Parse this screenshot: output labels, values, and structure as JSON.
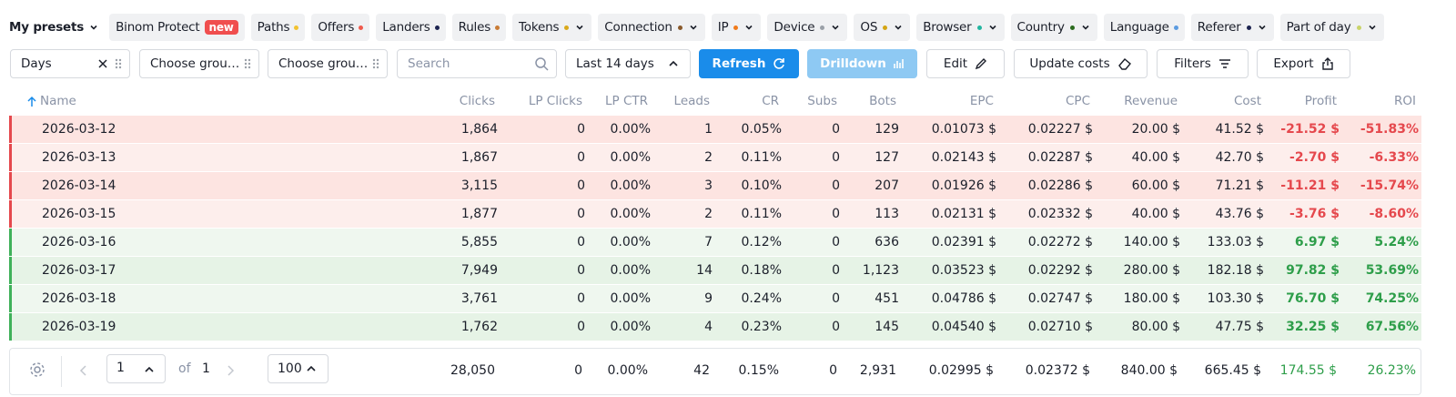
{
  "presets": {
    "label": "My presets"
  },
  "tabs": [
    {
      "label": "Binom Protect",
      "badge": "new"
    },
    {
      "label": "Paths",
      "dot": "#f2c230"
    },
    {
      "label": "Offers",
      "dot": "#ef5a4c"
    },
    {
      "label": "Landers",
      "dot": "#1c2350"
    },
    {
      "label": "Rules",
      "dot": "#c97b35"
    },
    {
      "label": "Tokens",
      "dot": "#d9a91a",
      "menu": true
    },
    {
      "label": "Connection",
      "dot": "#8a5a2b",
      "menu": true
    },
    {
      "label": "IP",
      "dot": "#f07a1a",
      "menu": true
    },
    {
      "label": "Device",
      "dot": "#9aa0a8",
      "menu": true
    },
    {
      "label": "OS",
      "dot": "#d4a514",
      "menu": true
    },
    {
      "label": "Browser",
      "dot": "#22b5a0",
      "menu": true
    },
    {
      "label": "Country",
      "dot": "#2b6b1e",
      "menu": true
    },
    {
      "label": "Language",
      "dot": "#5b9be0"
    },
    {
      "label": "Referer",
      "dot": "#1c2350",
      "menu": true
    },
    {
      "label": "Part of day",
      "dot": "#c9d46a",
      "menu": true
    }
  ],
  "toolbar": {
    "group1": "Days",
    "group2": "Choose grou…",
    "group3": "Choose grou…",
    "search": "Search",
    "period": "Last 14 days",
    "refresh": "Refresh",
    "drilldown": "Drilldown",
    "edit": "Edit",
    "update_costs": "Update costs",
    "filters": "Filters",
    "export": "Export"
  },
  "table": {
    "columns": [
      "Name",
      "Clicks",
      "LP Clicks",
      "LP CTR",
      "Leads",
      "CR",
      "Subs",
      "Bots",
      "EPC",
      "CPC",
      "Revenue",
      "Cost",
      "Profit",
      "ROI"
    ],
    "rows": [
      [
        "2026-03-12",
        "1,864",
        "0",
        "0.00%",
        "1",
        "0.05%",
        "0",
        "129",
        "0.01073 $",
        "0.02227 $",
        "20.00 $",
        "41.52 $",
        "-21.52 $",
        "-51.83%"
      ],
      [
        "2026-03-13",
        "1,867",
        "0",
        "0.00%",
        "2",
        "0.11%",
        "0",
        "127",
        "0.02143 $",
        "0.02287 $",
        "40.00 $",
        "42.70 $",
        "-2.70 $",
        "-6.33%"
      ],
      [
        "2026-03-14",
        "3,115",
        "0",
        "0.00%",
        "3",
        "0.10%",
        "0",
        "207",
        "0.01926 $",
        "0.02286 $",
        "60.00 $",
        "71.21 $",
        "-11.21 $",
        "-15.74%"
      ],
      [
        "2026-03-15",
        "1,877",
        "0",
        "0.00%",
        "2",
        "0.11%",
        "0",
        "113",
        "0.02131 $",
        "0.02332 $",
        "40.00 $",
        "43.76 $",
        "-3.76 $",
        "-8.60%"
      ],
      [
        "2026-03-16",
        "5,855",
        "0",
        "0.00%",
        "7",
        "0.12%",
        "0",
        "636",
        "0.02391 $",
        "0.02272 $",
        "140.00 $",
        "133.03 $",
        "6.97 $",
        "5.24%"
      ],
      [
        "2026-03-17",
        "7,949",
        "0",
        "0.00%",
        "14",
        "0.18%",
        "0",
        "1,123",
        "0.03523 $",
        "0.02292 $",
        "280.00 $",
        "182.18 $",
        "97.82 $",
        "53.69%"
      ],
      [
        "2026-03-18",
        "3,761",
        "0",
        "0.00%",
        "9",
        "0.24%",
        "0",
        "451",
        "0.04786 $",
        "0.02747 $",
        "180.00 $",
        "103.30 $",
        "76.70 $",
        "74.25%"
      ],
      [
        "2026-03-19",
        "1,762",
        "0",
        "0.00%",
        "4",
        "0.23%",
        "0",
        "145",
        "0.04540 $",
        "0.02710 $",
        "80.00 $",
        "47.75 $",
        "32.25 $",
        "67.56%"
      ]
    ],
    "totals": [
      "28,050",
      "0",
      "0.00%",
      "42",
      "0.15%",
      "0",
      "2,931",
      "0.02995 $",
      "0.02372 $",
      "840.00 $",
      "665.45 $",
      "174.55 $",
      "26.23%"
    ]
  },
  "pagination": {
    "page": "1",
    "of": "of",
    "pages": "1",
    "per_page": "100"
  }
}
